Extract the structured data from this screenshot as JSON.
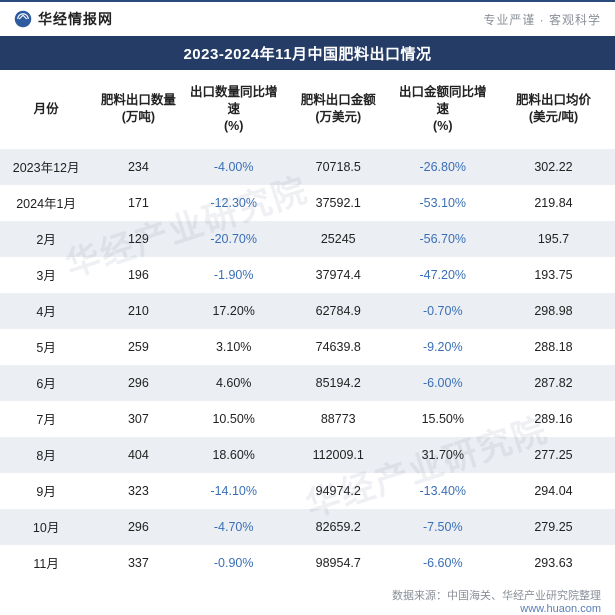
{
  "header": {
    "brand_name": "华经情报网",
    "slogan": "专业严谨 · 客观科学",
    "logo_color": "#2e5aa0"
  },
  "title": "2023-2024年11月中国肥料出口情况",
  "table": {
    "columns": [
      "月份",
      "肥料出口数量\n(万吨)",
      "出口数量同比增速\n(%)",
      "肥料出口金额\n(万美元)",
      "出口金额同比增速\n(%)",
      "肥料出口均价\n(美元/吨)"
    ],
    "col_widths": [
      "15%",
      "15%",
      "16%",
      "18%",
      "16%",
      "20%"
    ],
    "rows": [
      {
        "month": "2023年12月",
        "qty": "234",
        "qty_yoy": "-4.00%",
        "qty_yoy_neg": true,
        "amt": "70718.5",
        "amt_yoy": "-26.80%",
        "amt_yoy_neg": true,
        "price": "302.22"
      },
      {
        "month": "2024年1月",
        "qty": "171",
        "qty_yoy": "-12.30%",
        "qty_yoy_neg": true,
        "amt": "37592.1",
        "amt_yoy": "-53.10%",
        "amt_yoy_neg": true,
        "price": "219.84"
      },
      {
        "month": "2月",
        "qty": "129",
        "qty_yoy": "-20.70%",
        "qty_yoy_neg": true,
        "amt": "25245",
        "amt_yoy": "-56.70%",
        "amt_yoy_neg": true,
        "price": "195.7"
      },
      {
        "month": "3月",
        "qty": "196",
        "qty_yoy": "-1.90%",
        "qty_yoy_neg": true,
        "amt": "37974.4",
        "amt_yoy": "-47.20%",
        "amt_yoy_neg": true,
        "price": "193.75"
      },
      {
        "month": "4月",
        "qty": "210",
        "qty_yoy": "17.20%",
        "qty_yoy_neg": false,
        "amt": "62784.9",
        "amt_yoy": "-0.70%",
        "amt_yoy_neg": true,
        "price": "298.98"
      },
      {
        "month": "5月",
        "qty": "259",
        "qty_yoy": "3.10%",
        "qty_yoy_neg": false,
        "amt": "74639.8",
        "amt_yoy": "-9.20%",
        "amt_yoy_neg": true,
        "price": "288.18"
      },
      {
        "month": "6月",
        "qty": "296",
        "qty_yoy": "4.60%",
        "qty_yoy_neg": false,
        "amt": "85194.2",
        "amt_yoy": "-6.00%",
        "amt_yoy_neg": true,
        "price": "287.82"
      },
      {
        "month": "7月",
        "qty": "307",
        "qty_yoy": "10.50%",
        "qty_yoy_neg": false,
        "amt": "88773",
        "amt_yoy": "15.50%",
        "amt_yoy_neg": false,
        "price": "289.16"
      },
      {
        "month": "8月",
        "qty": "404",
        "qty_yoy": "18.60%",
        "qty_yoy_neg": false,
        "amt": "112009.1",
        "amt_yoy": "31.70%",
        "amt_yoy_neg": false,
        "price": "277.25"
      },
      {
        "month": "9月",
        "qty": "323",
        "qty_yoy": "-14.10%",
        "qty_yoy_neg": true,
        "amt": "94974.2",
        "amt_yoy": "-13.40%",
        "amt_yoy_neg": true,
        "price": "294.04"
      },
      {
        "month": "10月",
        "qty": "296",
        "qty_yoy": "-4.70%",
        "qty_yoy_neg": true,
        "amt": "82659.2",
        "amt_yoy": "-7.50%",
        "amt_yoy_neg": true,
        "price": "279.25"
      },
      {
        "month": "11月",
        "qty": "337",
        "qty_yoy": "-0.90%",
        "qty_yoy_neg": true,
        "amt": "98954.7",
        "amt_yoy": "-6.60%",
        "amt_yoy_neg": true,
        "price": "293.63"
      }
    ],
    "zebra_color": "#ebeef2",
    "neg_color": "#3a6fb7",
    "text_color": "#222222"
  },
  "footer": {
    "label": "数据来源：",
    "source": "中国海关、华经产业研究院整理",
    "site": "www.huaon.com"
  },
  "watermark": "华经产业研究院"
}
